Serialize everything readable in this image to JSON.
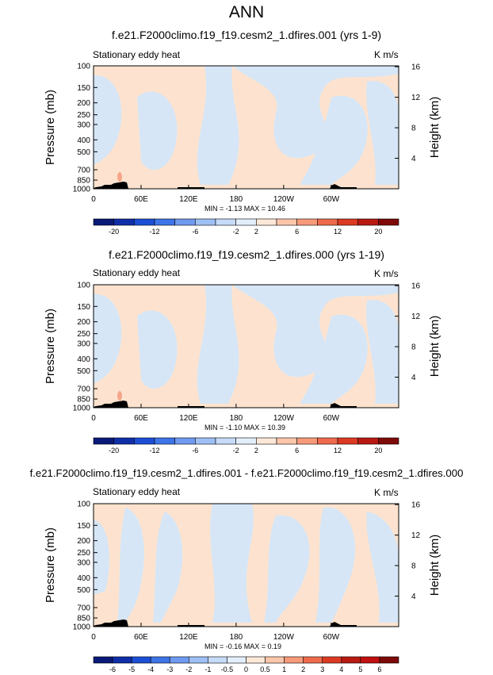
{
  "main_title": "ANN",
  "panels": [
    {
      "title": "f.e21.F2000climo.f19_f19.cesm2_1.dfires.001 (yrs 1-9)",
      "variable": "Stationary eddy heat",
      "units": "K m/s",
      "min_max": "MIN = -1.13  MAX = 10.46",
      "colorbar_labels": [
        "-20",
        "-12",
        "-6",
        "-2",
        "2",
        "6",
        "12",
        "20"
      ]
    },
    {
      "title": "f.e21.F2000climo.f19_f19.cesm2_1.dfires.000 (yrs 1-19)",
      "variable": "Stationary eddy heat",
      "units": "K m/s",
      "min_max": "MIN = -1.10  MAX = 10.39",
      "colorbar_labels": [
        "-20",
        "-12",
        "-6",
        "-2",
        "2",
        "6",
        "12",
        "20"
      ]
    },
    {
      "title": "f.e21.F2000climo.f19_f19.cesm2_1.dfires.001 - f.e21.F2000climo.f19_f19.cesm2_1.dfires.000",
      "variable": "Stationary eddy heat",
      "units": "K m/s",
      "min_max": "MIN = -0.16  MAX = 0.19",
      "colorbar_labels": [
        "-6",
        "-5",
        "-4",
        "-3",
        "-2",
        "-1",
        "-0.5",
        "0",
        "0.5",
        "1",
        "2",
        "3",
        "4",
        "5",
        "6"
      ]
    }
  ],
  "chart_data": [
    {
      "type": "heatmap",
      "title": "f.e21.F2000climo.f19_f19.cesm2_1.dfires.001 (yrs 1-9)",
      "subtitle": "Stationary eddy heat",
      "units": "K m/s",
      "xlabel": "",
      "ylabel": "Pressure (mb)",
      "ylabel_right": "Height (km)",
      "x_tick_labels": [
        "0",
        "60E",
        "120E",
        "180",
        "120W",
        "60W"
      ],
      "y_tick_labels": [
        "100",
        "150",
        "200",
        "250",
        "300",
        "400",
        "500",
        "700",
        "850",
        "1000"
      ],
      "y_right_tick_labels": [
        "16",
        "12",
        "8",
        "4"
      ],
      "min": -1.13,
      "max": 10.46,
      "colorbar_levels": [
        -20,
        -12,
        -6,
        -2,
        2,
        6,
        12,
        20
      ]
    },
    {
      "type": "heatmap",
      "title": "f.e21.F2000climo.f19_f19.cesm2_1.dfires.000 (yrs 1-19)",
      "subtitle": "Stationary eddy heat",
      "units": "K m/s",
      "xlabel": "",
      "ylabel": "Pressure (mb)",
      "ylabel_right": "Height (km)",
      "x_tick_labels": [
        "0",
        "60E",
        "120E",
        "180",
        "120W",
        "60W"
      ],
      "y_tick_labels": [
        "100",
        "150",
        "200",
        "250",
        "300",
        "400",
        "500",
        "700",
        "850",
        "1000"
      ],
      "y_right_tick_labels": [
        "16",
        "12",
        "8",
        "4"
      ],
      "min": -1.1,
      "max": 10.39,
      "colorbar_levels": [
        -20,
        -12,
        -6,
        -2,
        2,
        6,
        12,
        20
      ]
    },
    {
      "type": "heatmap",
      "title": "f.e21.F2000climo.f19_f19.cesm2_1.dfires.001 - f.e21.F2000climo.f19_f19.cesm2_1.dfires.000",
      "subtitle": "Stationary eddy heat",
      "units": "K m/s",
      "xlabel": "",
      "ylabel": "Pressure (mb)",
      "ylabel_right": "Height (km)",
      "x_tick_labels": [
        "0",
        "60E",
        "120E",
        "180",
        "120W",
        "60W"
      ],
      "y_tick_labels": [
        "100",
        "150",
        "200",
        "250",
        "300",
        "400",
        "500",
        "700",
        "850",
        "1000"
      ],
      "y_right_tick_labels": [
        "16",
        "12",
        "8",
        "4"
      ],
      "min": -0.16,
      "max": 0.19,
      "colorbar_levels": [
        -6,
        -5,
        -4,
        -3,
        -2,
        -1,
        -0.5,
        0,
        0.5,
        1,
        2,
        3,
        4,
        5,
        6
      ]
    }
  ],
  "colors": {
    "positive_fill": "#fde3cf",
    "negative_fill": "#d6e6f6",
    "topography": "#000000",
    "colorbar_abs": [
      "#0a1a78",
      "#102ea8",
      "#1c4fd6",
      "#3d74e8",
      "#6f9aef",
      "#9ec0f4",
      "#c6dbf7",
      "#e3eefb",
      "#fde8d8",
      "#fcc6aa",
      "#f79a7a",
      "#ee6a4c",
      "#dc3a22",
      "#b81a12",
      "#7d0a08"
    ],
    "colorbar_diff": [
      "#0a1a78",
      "#102ea8",
      "#1c4fd6",
      "#3d74e8",
      "#6f9aef",
      "#9ec0f4",
      "#c6dbf7",
      "#e3eefb",
      "#fde8d8",
      "#fcc6aa",
      "#f79a7a",
      "#ee6a4c",
      "#dc3a22",
      "#b81a12",
      "#c01010",
      "#7d0a08"
    ]
  }
}
